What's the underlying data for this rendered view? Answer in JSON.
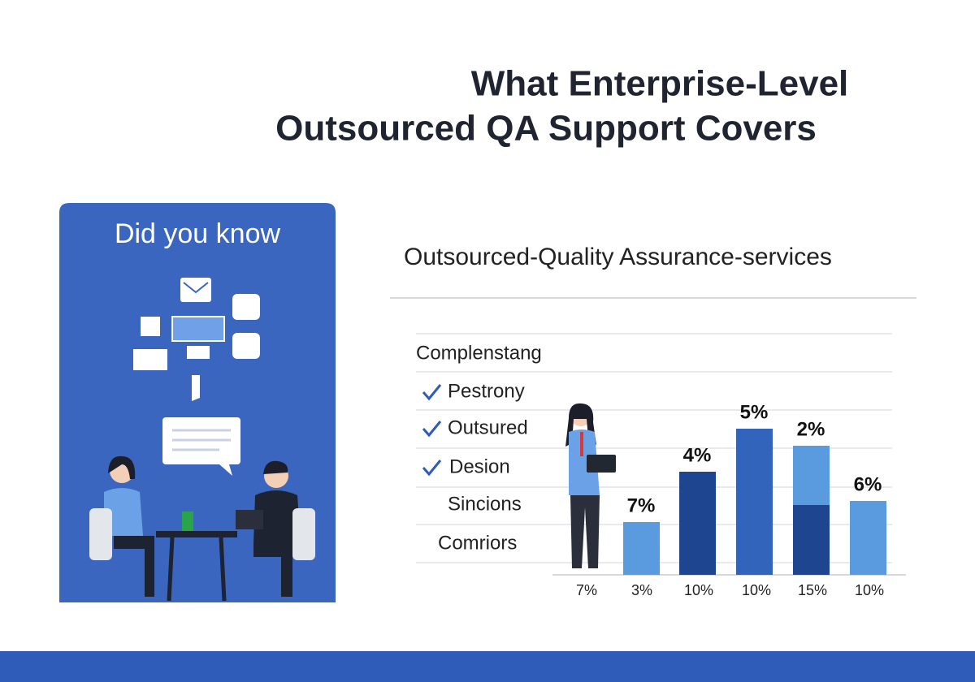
{
  "header": {
    "title_lines": [
      "What Enterprise-Level",
      "Outsourced QA Support Covers"
    ]
  },
  "card": {
    "title": "Did you know"
  },
  "panel": {
    "title": "Outsourced-Quality Assurance-services",
    "items": [
      {
        "text": "Complenstang",
        "check": false
      },
      {
        "text": "Pestrony",
        "check": true
      },
      {
        "text": "Outsured",
        "check": true
      },
      {
        "text": "Desion",
        "check": true
      },
      {
        "text": "Sincions",
        "check": false
      },
      {
        "text": "Comriors",
        "check": false
      }
    ],
    "bar_top_labels": [
      "7%",
      "4%",
      "5%",
      "2%",
      "6%"
    ],
    "bottom_labels": [
      "7%",
      "3%",
      "10%",
      "10%",
      "15%",
      "10%"
    ]
  }
}
